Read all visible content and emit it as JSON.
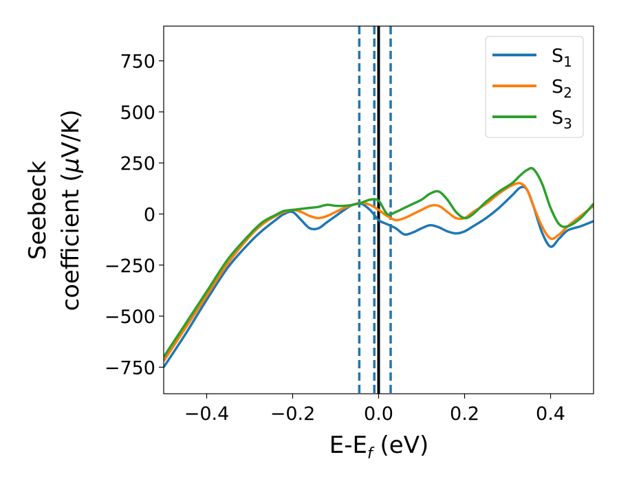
{
  "chart_data": {
    "type": "line",
    "xlabel": {
      "main": "E-E",
      "sub": "f",
      "rest": " (eV)"
    },
    "ylabel": {
      "line1": "Seebeck",
      "line2_text": "coefficient  (",
      "line2_mu": "μ",
      "line2_end": "V/K)"
    },
    "xlim": [
      -0.5,
      0.5
    ],
    "ylim": [
      -880,
      920
    ],
    "xticks": [
      -0.4,
      -0.2,
      0.0,
      0.2,
      0.4
    ],
    "xtick_labels": [
      "−0.4",
      "−0.2",
      "0.0",
      "0.2",
      "0.4"
    ],
    "yticks": [
      750,
      500,
      250,
      0,
      -250,
      -500,
      -750
    ],
    "ytick_labels": [
      "750",
      "500",
      "250",
      "0",
      "−250",
      "−500",
      "−750"
    ],
    "grid": false,
    "legend": {
      "placement": "top-right"
    },
    "vlines": [
      {
        "x": -0.045,
        "style": "dashed",
        "color": "#1f77b4"
      },
      {
        "x": -0.01,
        "style": "dashed",
        "color": "#1f77b4"
      },
      {
        "x": 0.028,
        "style": "dashed",
        "color": "#1f77b4"
      },
      {
        "x": 0.0,
        "style": "solid",
        "color": "#000000"
      }
    ],
    "series": [
      {
        "name": "S",
        "sub": "1",
        "color": "#1f77b4",
        "x": [
          -0.5,
          -0.45,
          -0.4,
          -0.35,
          -0.3,
          -0.27,
          -0.24,
          -0.22,
          -0.2,
          -0.18,
          -0.16,
          -0.14,
          -0.12,
          -0.1,
          -0.08,
          -0.06,
          -0.04,
          -0.02,
          0.0,
          0.02,
          0.04,
          0.06,
          0.08,
          0.1,
          0.12,
          0.14,
          0.16,
          0.18,
          0.2,
          0.22,
          0.25,
          0.28,
          0.31,
          0.33,
          0.345,
          0.36,
          0.38,
          0.4,
          0.42,
          0.44,
          0.47,
          0.5
        ],
        "y": [
          -750,
          -590,
          -420,
          -260,
          -140,
          -80,
          -30,
          0,
          10,
          -30,
          -70,
          -70,
          -40,
          -10,
          20,
          45,
          50,
          20,
          -30,
          -50,
          -70,
          -100,
          -90,
          -70,
          -55,
          -65,
          -85,
          -95,
          -85,
          -60,
          -20,
          30,
          90,
          130,
          120,
          40,
          -90,
          -160,
          -120,
          -80,
          -60,
          -35
        ]
      },
      {
        "name": "S",
        "sub": "2",
        "color": "#ff7f0e",
        "x": [
          -0.5,
          -0.45,
          -0.4,
          -0.35,
          -0.3,
          -0.27,
          -0.24,
          -0.22,
          -0.2,
          -0.18,
          -0.16,
          -0.14,
          -0.12,
          -0.1,
          -0.08,
          -0.06,
          -0.04,
          -0.02,
          0.0,
          0.02,
          0.04,
          0.06,
          0.08,
          0.1,
          0.12,
          0.14,
          0.16,
          0.18,
          0.2,
          0.22,
          0.25,
          0.28,
          0.31,
          0.33,
          0.345,
          0.36,
          0.38,
          0.4,
          0.42,
          0.44,
          0.47,
          0.5
        ],
        "y": [
          -720,
          -560,
          -400,
          -240,
          -110,
          -50,
          -10,
          10,
          20,
          10,
          -10,
          -20,
          -10,
          10,
          30,
          45,
          55,
          45,
          20,
          -10,
          -30,
          -20,
          0,
          20,
          40,
          40,
          10,
          -20,
          -20,
          10,
          50,
          100,
          140,
          150,
          120,
          40,
          -60,
          -120,
          -100,
          -60,
          -10,
          40
        ]
      },
      {
        "name": "S",
        "sub": "3",
        "color": "#2ca02c",
        "x": [
          -0.5,
          -0.45,
          -0.4,
          -0.35,
          -0.3,
          -0.27,
          -0.24,
          -0.22,
          -0.2,
          -0.18,
          -0.16,
          -0.14,
          -0.12,
          -0.1,
          -0.08,
          -0.06,
          -0.04,
          -0.02,
          0.0,
          0.02,
          0.04,
          0.06,
          0.08,
          0.1,
          0.12,
          0.14,
          0.16,
          0.18,
          0.2,
          0.22,
          0.25,
          0.28,
          0.31,
          0.33,
          0.345,
          0.36,
          0.38,
          0.4,
          0.42,
          0.44,
          0.47,
          0.5
        ],
        "y": [
          -700,
          -540,
          -380,
          -220,
          -100,
          -40,
          -5,
          15,
          20,
          25,
          30,
          35,
          45,
          40,
          40,
          45,
          55,
          70,
          65,
          0,
          10,
          30,
          50,
          70,
          100,
          110,
          70,
          10,
          -20,
          0,
          60,
          110,
          150,
          190,
          215,
          220,
          150,
          30,
          -50,
          -60,
          -20,
          50
        ]
      }
    ]
  }
}
